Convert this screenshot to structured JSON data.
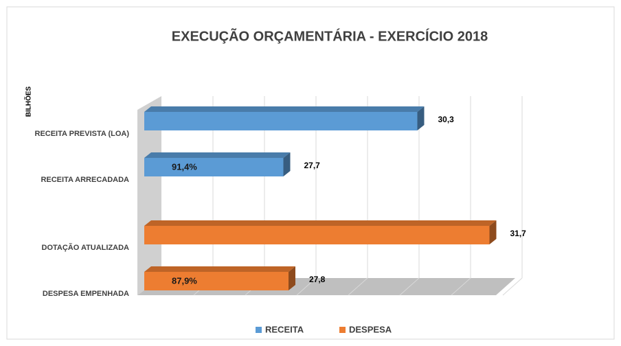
{
  "chart_data": {
    "type": "bar3d",
    "title": "EXECUÇÃO ORÇAMENTÁRIA  - EXERCÍCIO 2018",
    "y_axis_label": "BILHÕES",
    "categories": [
      "RECEITA PREVISTA (LOA)",
      "RECEITA ARRECADADA",
      "DOTAÇÃO ATUALIZADA",
      "DESPESA EMPENHADA"
    ],
    "series": [
      {
        "name": "RECEITA",
        "color": "#5b9bd5",
        "values": [
          30.3,
          27.7,
          null,
          null
        ],
        "value_labels": [
          "30,3",
          "27,7",
          null,
          null
        ]
      },
      {
        "name": "DESPESA",
        "color": "#ed7d31",
        "values": [
          null,
          null,
          31.7,
          27.8
        ],
        "value_labels": [
          null,
          null,
          "31,7",
          "27,8"
        ]
      }
    ],
    "annotations": [
      "91,4%",
      "87,9%"
    ],
    "xlim": [
      25,
      32.2
    ],
    "xticks": [
      26,
      27,
      28,
      29,
      30,
      31,
      32
    ],
    "grid": true,
    "legend": "bottom"
  }
}
